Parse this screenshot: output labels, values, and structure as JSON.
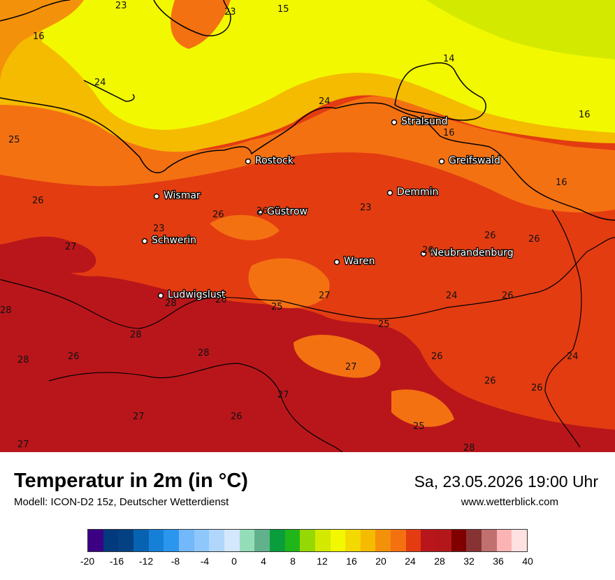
{
  "title": "Temperatur in 2m (in °C)",
  "subtitle": "Modell: ICON-D2 15z, Deutscher Wetterdienst",
  "datetime": "Sa, 23.05.2026 19:00 Uhr",
  "website": "www.wetterblick.com",
  "cities": [
    {
      "id": "stralsund",
      "name": "Stralsund"
    },
    {
      "id": "rostock",
      "name": "Rostock"
    },
    {
      "id": "greifswald",
      "name": "Greifswald"
    },
    {
      "id": "wismar",
      "name": "Wismar"
    },
    {
      "id": "demmin",
      "name": "Demmin"
    },
    {
      "id": "guestrow",
      "name": "Güstrow"
    },
    {
      "id": "schwerin",
      "name": "Schwerin"
    },
    {
      "id": "waren",
      "name": "Waren"
    },
    {
      "id": "neubrandenburg",
      "name": "Neubrandenburg"
    },
    {
      "id": "ludwigslust",
      "name": "Ludwigslust"
    }
  ],
  "values": [
    "23",
    "23",
    "15",
    "16",
    "14",
    "24",
    "24",
    "16",
    "25",
    "16",
    "16",
    "26",
    "26",
    "26",
    "23",
    "23",
    "27",
    "26",
    "26",
    "26",
    "28",
    "28",
    "26",
    "27",
    "25",
    "27",
    "24",
    "26",
    "25",
    "24",
    "28",
    "28",
    "26",
    "28",
    "27",
    "26",
    "26",
    "27",
    "26",
    "27",
    "25",
    "28"
  ],
  "scale": {
    "ticks": [
      "-20",
      "-16",
      "-12",
      "-8",
      "-4",
      "0",
      "4",
      "8",
      "12",
      "16",
      "20",
      "24",
      "28",
      "32",
      "36",
      "40"
    ],
    "colors": [
      "#3b0083",
      "#033a7e",
      "#044182",
      "#0862b2",
      "#1580d6",
      "#2b96ee",
      "#72b8fb",
      "#8ec7fb",
      "#b0d7fb",
      "#d4e7fc",
      "#95ddb8",
      "#61b28c",
      "#0a9d3c",
      "#20b619",
      "#96d804",
      "#d3ea00",
      "#f2f800",
      "#f2d900",
      "#f4bb00",
      "#f4910a",
      "#f47112",
      "#e33c11",
      "#b9161b",
      "#b3171a",
      "#800000",
      "#883333",
      "#c17070",
      "#fbb4b3",
      "#fde2e1"
    ]
  }
}
